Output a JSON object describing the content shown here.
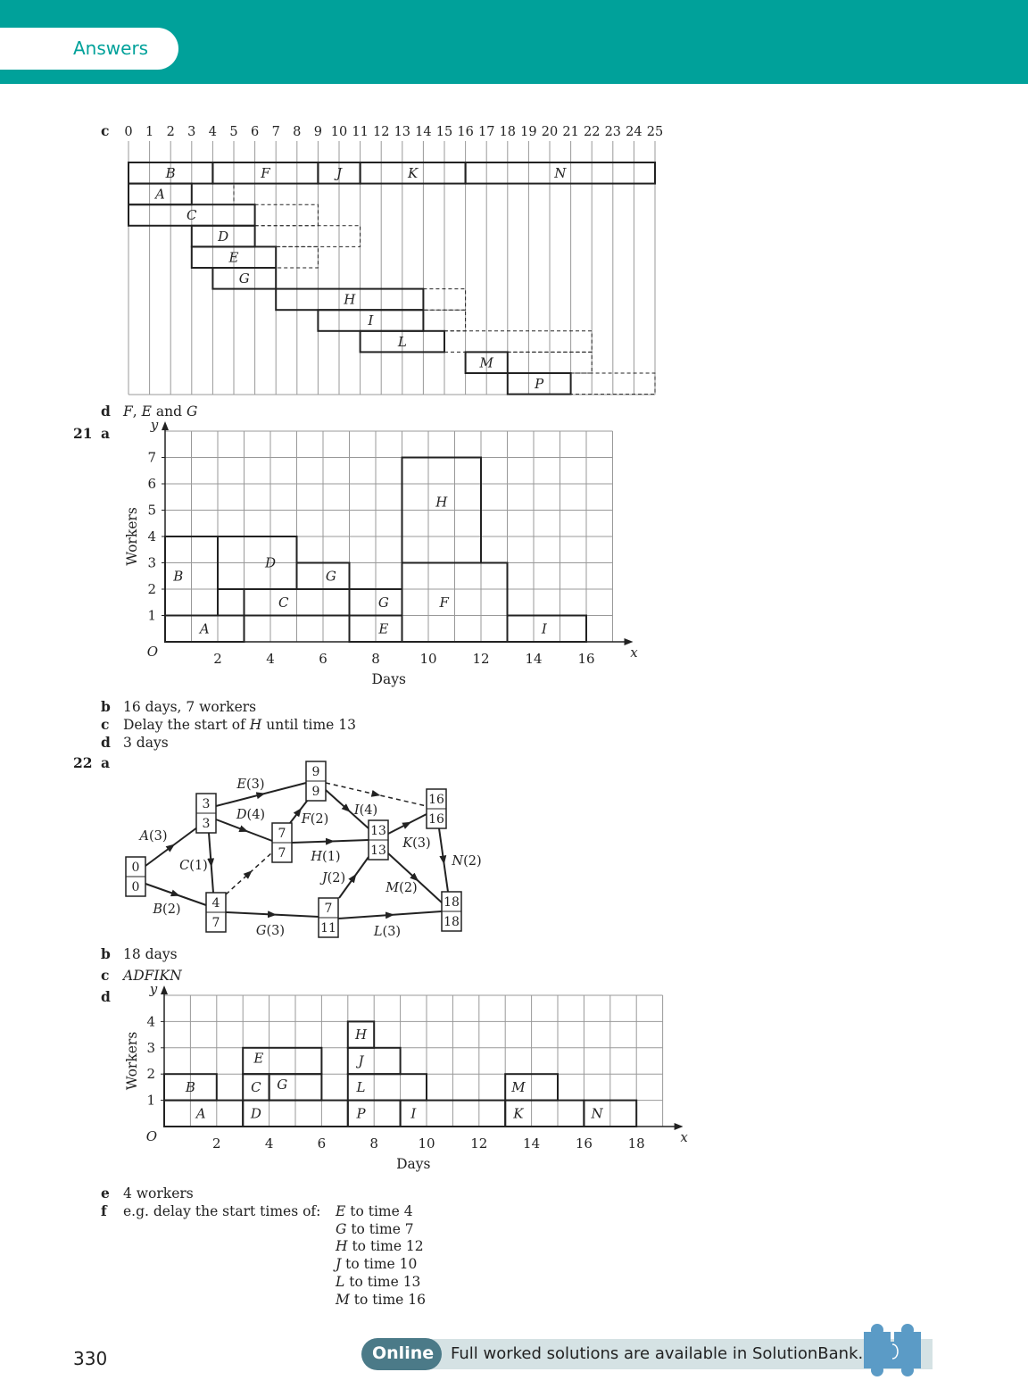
{
  "header": {
    "tab_label": "Answers"
  },
  "q20": {
    "c_label": "c",
    "axis_ticks": [
      "0",
      "1",
      "2",
      "3",
      "4",
      "5",
      "6",
      "7",
      "8",
      "9",
      "10",
      "11",
      "12",
      "13",
      "14",
      "15",
      "16",
      "17",
      "18",
      "19",
      "20",
      "21",
      "22",
      "23",
      "24",
      "25"
    ],
    "gantt_rows": [
      [
        "B",
        "F",
        "J",
        "K",
        "N"
      ],
      [
        "A"
      ],
      [
        "C"
      ],
      [
        "D"
      ],
      [
        "E"
      ],
      [
        "G"
      ],
      [
        "H"
      ],
      [
        "I"
      ],
      [
        "L"
      ],
      [
        "M"
      ],
      [
        "P"
      ]
    ],
    "d_label": "d",
    "d_text": "F, E and G"
  },
  "q21": {
    "number": "21",
    "a_label": "a",
    "chart_data": {
      "type": "resource histogram",
      "xlabel": "Days",
      "ylabel": "Workers",
      "x_axis_letter": "x",
      "y_axis_letter": "y",
      "origin": "O",
      "x_ticks": [
        2,
        4,
        6,
        8,
        10,
        12,
        14,
        16
      ],
      "y_ticks": [
        1,
        2,
        3,
        4,
        5,
        6,
        7
      ],
      "block_labels": [
        "A",
        "B",
        "C",
        "D",
        "G",
        "E",
        "G",
        "H",
        "F",
        "I"
      ]
    },
    "b_label": "b",
    "b_text": "16 days, 7 workers",
    "c_label": "c",
    "c_text_pre": "Delay the start of ",
    "c_text_var": "H",
    "c_text_post": " until time 13",
    "d_label": "d",
    "d_text": "3 days"
  },
  "q22": {
    "number": "22",
    "a_label": "a",
    "network": {
      "nodes": [
        {
          "early": "0",
          "late": "0"
        },
        {
          "early": "3",
          "late": "3"
        },
        {
          "early": "4",
          "late": "7"
        },
        {
          "early": "7",
          "late": "7"
        },
        {
          "early": "9",
          "late": "9"
        },
        {
          "early": "7",
          "late": "11"
        },
        {
          "early": "13",
          "late": "13"
        },
        {
          "early": "16",
          "late": "16"
        },
        {
          "early": "18",
          "late": "18"
        }
      ],
      "activities": [
        "A(3)",
        "B(2)",
        "C(1)",
        "D(4)",
        "E(3)",
        "F(2)",
        "G(3)",
        "H(1)",
        "I(4)",
        "J(2)",
        "K(3)",
        "L(3)",
        "M(2)",
        "N(2)"
      ]
    },
    "b_label": "b",
    "b_text": "18 days",
    "c_label": "c",
    "c_text": "ADFIKN",
    "d_label": "d",
    "chart_data": {
      "type": "resource histogram",
      "xlabel": "Days",
      "ylabel": "Workers",
      "x_axis_letter": "x",
      "y_axis_letter": "y",
      "origin": "O",
      "x_ticks": [
        2,
        4,
        6,
        8,
        10,
        12,
        14,
        16,
        18
      ],
      "y_ticks": [
        1,
        2,
        3,
        4
      ],
      "block_labels": [
        "A",
        "B",
        "D",
        "C",
        "G",
        "E",
        "P",
        "L",
        "J",
        "H",
        "I",
        "K",
        "M",
        "N"
      ]
    },
    "e_label": "e",
    "e_text": "4 workers",
    "f_label": "f",
    "f_text": "e.g. delay the start times of:",
    "f_items": [
      {
        "var": "E",
        "rest": " to time 4"
      },
      {
        "var": "G",
        "rest": " to time 7"
      },
      {
        "var": "H",
        "rest": " to time 12"
      },
      {
        "var": "J",
        "rest": " to time 10"
      },
      {
        "var": "L",
        "rest": " to time 13"
      },
      {
        "var": "M",
        "rest": " to time 16"
      }
    ]
  },
  "footer": {
    "page_number": "330",
    "online_label": "Online",
    "online_text": "Full worked solutions are available in SolutionBank."
  }
}
